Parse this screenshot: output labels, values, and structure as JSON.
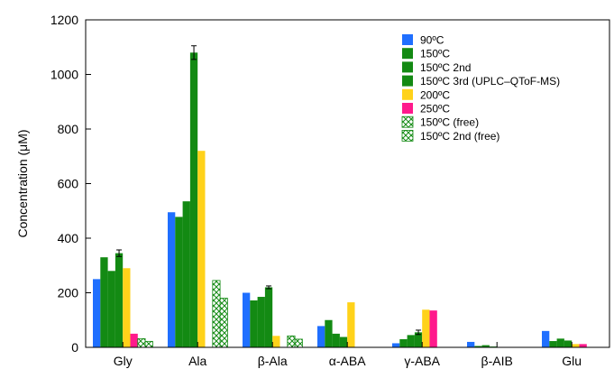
{
  "chart_data": {
    "type": "bar",
    "title": "",
    "xlabel": "",
    "ylabel": "Concentration (μM)",
    "ylim": [
      0,
      1200
    ],
    "yticks": [
      0,
      200,
      400,
      600,
      800,
      1000,
      1200
    ],
    "categories": [
      "Gly",
      "Ala",
      "β-Ala",
      "α-ABA",
      "γ-ABA",
      "β-AIB",
      "Glu"
    ],
    "legend_position": "top-right",
    "grid": false,
    "series": [
      {
        "name": "90ºC",
        "color": "#1f6fff",
        "pattern": "solid",
        "values": [
          250,
          495,
          200,
          78,
          15,
          20,
          60
        ],
        "errors": [
          0,
          0,
          0,
          0,
          0,
          0,
          0
        ]
      },
      {
        "name": "150ºC",
        "color": "#138a13",
        "pattern": "solid",
        "values": [
          330,
          478,
          172,
          100,
          30,
          5,
          23
        ],
        "errors": [
          0,
          0,
          0,
          0,
          0,
          0,
          0
        ]
      },
      {
        "name": "150ºC 2nd",
        "color": "#138a13",
        "pattern": "solid",
        "values": [
          280,
          535,
          185,
          50,
          45,
          8,
          32
        ],
        "errors": [
          0,
          0,
          0,
          0,
          0,
          0,
          0
        ]
      },
      {
        "name": "150ºC 3rd (UPLC–QToF-MS)",
        "color": "#138a13",
        "pattern": "solid",
        "values": [
          345,
          1080,
          220,
          38,
          55,
          3,
          25
        ],
        "errors": [
          12,
          25,
          5,
          0,
          8,
          0,
          0
        ]
      },
      {
        "name": "200ºC",
        "color": "#ffd21a",
        "pattern": "solid",
        "values": [
          290,
          720,
          42,
          165,
          138,
          0,
          12
        ],
        "errors": [
          0,
          0,
          0,
          0,
          0,
          0,
          0
        ]
      },
      {
        "name": "250ºC",
        "color": "#ff1a8c",
        "pattern": "solid",
        "values": [
          50,
          0,
          0,
          0,
          135,
          0,
          12
        ],
        "errors": [
          0,
          0,
          0,
          0,
          0,
          0,
          0
        ]
      },
      {
        "name": "150ºC (free)",
        "color": "#138a13",
        "pattern": "hatch",
        "values": [
          32,
          245,
          42,
          0,
          0,
          0,
          0
        ],
        "errors": [
          0,
          0,
          0,
          0,
          0,
          0,
          0
        ]
      },
      {
        "name": "150ºC 2nd (free)",
        "color": "#138a13",
        "pattern": "hatch",
        "values": [
          22,
          180,
          30,
          0,
          0,
          0,
          0
        ],
        "errors": [
          0,
          0,
          0,
          0,
          0,
          0,
          0
        ]
      }
    ]
  }
}
